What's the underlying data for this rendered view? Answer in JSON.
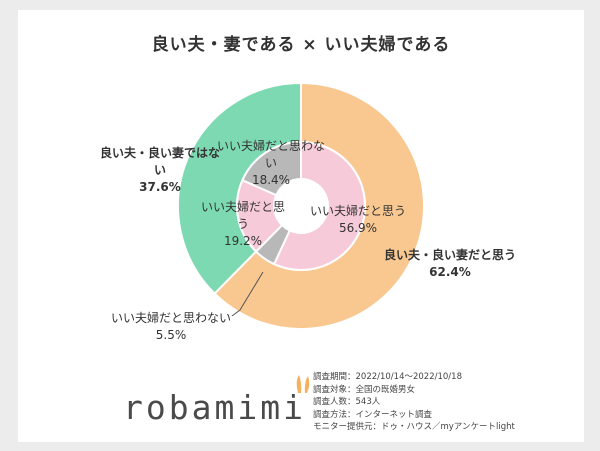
{
  "chart_data": {
    "type": "pie",
    "title": "良い夫・妻である × いい夫婦である",
    "outer_ring": [
      {
        "label": "良い夫・良い妻だと思う",
        "value": 62.4,
        "color": "#f9c891"
      },
      {
        "label": "良い夫・良い妻ではない",
        "value": 37.6,
        "color": "#7dd9b2"
      }
    ],
    "inner_ring": [
      {
        "label": "いい夫婦だと思う",
        "value": 56.9,
        "color": "#f7cad9",
        "group": "良い夫・良い妻だと思う"
      },
      {
        "label": "いい夫婦だと思わない",
        "value": 5.5,
        "color": "#b8b8b8",
        "group": "良い夫・良い妻だと思う"
      },
      {
        "label": "いい夫婦だと思う",
        "value": 19.2,
        "color": "#f7cad9",
        "group": "良い夫・良い妻ではない"
      },
      {
        "label": "いい夫婦だと思わない",
        "value": 18.4,
        "color": "#b8b8b8",
        "group": "良い夫・良い妻ではない"
      }
    ],
    "percent_labels": {
      "outer_positive": "62.4%",
      "outer_negative": "37.6%",
      "inner_pos_yes": "56.9%",
      "inner_pos_no": "5.5%",
      "inner_neg_yes": "19.2%",
      "inner_neg_no": "18.4%"
    }
  },
  "brand": {
    "logo_text": "robamimi",
    "accent_color": "#f5b060"
  },
  "survey": {
    "period": "調査期間：2022/10/14〜2022/10/18",
    "target": "調査対象：全国の既婚男女",
    "count": "調査人数：543人",
    "method": "調査方法：インターネット調査",
    "provider": "モニター提供元：ドゥ・ハウス／myアンケートlight"
  }
}
